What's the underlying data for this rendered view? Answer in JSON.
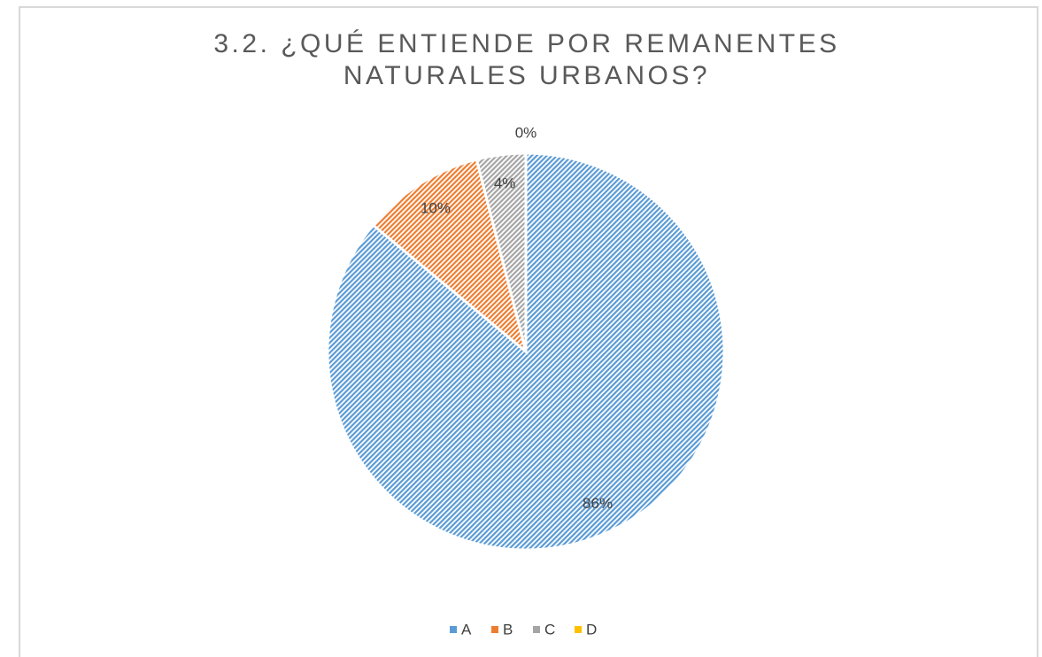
{
  "chart_data": {
    "type": "pie",
    "title": "3.2. ¿QUÉ ENTIENDE POR REMANENTES NATURALES URBANOS?",
    "categories": [
      "A",
      "B",
      "C",
      "D"
    ],
    "values": [
      86,
      10,
      4,
      0
    ],
    "value_labels": [
      "86%",
      "10%",
      "4%",
      "0%"
    ],
    "colors": [
      "#5b9bd5",
      "#ed7d31",
      "#a5a5a5",
      "#ffc000"
    ],
    "legend": "bottom"
  }
}
